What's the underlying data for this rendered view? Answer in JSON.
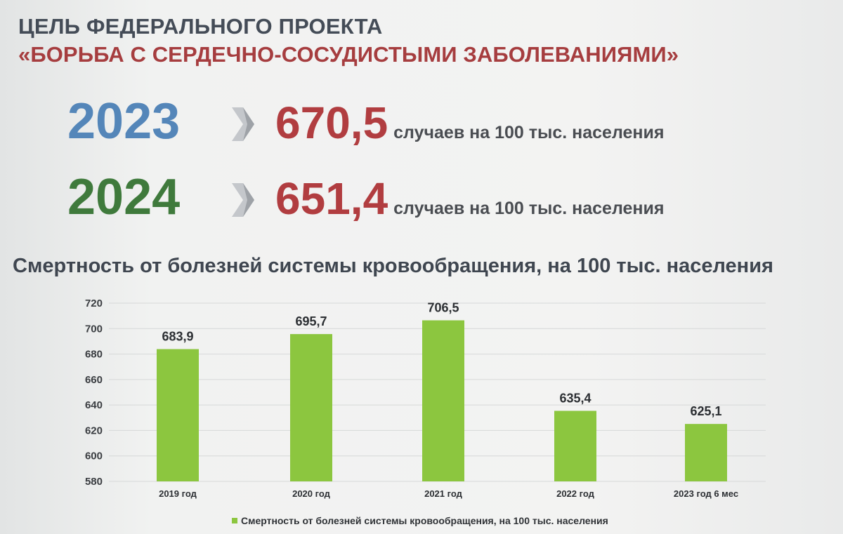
{
  "header": {
    "title": "ЦЕЛЬ ФЕДЕРАЛЬНОГО ПРОЕКТА",
    "project_name": "«БОРЬБА С СЕРДЕЧНО-СОСУДИСТЫМИ ЗАБОЛЕВАНИЯМИ»"
  },
  "kpis": [
    {
      "year": "2023",
      "value": "670,5",
      "unit": "случаев на 100 тыс. населения",
      "year_color": "#5486b9"
    },
    {
      "year": "2024",
      "value": "651,4",
      "unit": "случаев на 100 тыс. населения",
      "year_color": "#3f7a3c"
    }
  ],
  "colors": {
    "accent_red": "#b13d40",
    "bar_green": "#8cc63f",
    "chevron_grey": "#c4c7cb"
  },
  "chart_data": {
    "type": "bar",
    "title": "Смертность от болезней системы кровообращения, на 100 тыс. населения",
    "categories": [
      "2019 год",
      "2020 год",
      "2021 год",
      "2022 год",
      "2023 год 6 мес"
    ],
    "series": [
      {
        "name": "Смертность от болезней системы кровообращения, на 100 тыс. населения",
        "values": [
          683.9,
          695.7,
          706.5,
          635.4,
          625.1
        ],
        "labels": [
          "683,9",
          "695,7",
          "706,5",
          "635,4",
          "625,1"
        ],
        "color": "#8cc63f"
      }
    ],
    "ylim": [
      580,
      720
    ],
    "yticks": [
      "580",
      "600",
      "620",
      "640",
      "660",
      "680",
      "700",
      "720"
    ],
    "grid": true,
    "legend_position": "bottom"
  }
}
